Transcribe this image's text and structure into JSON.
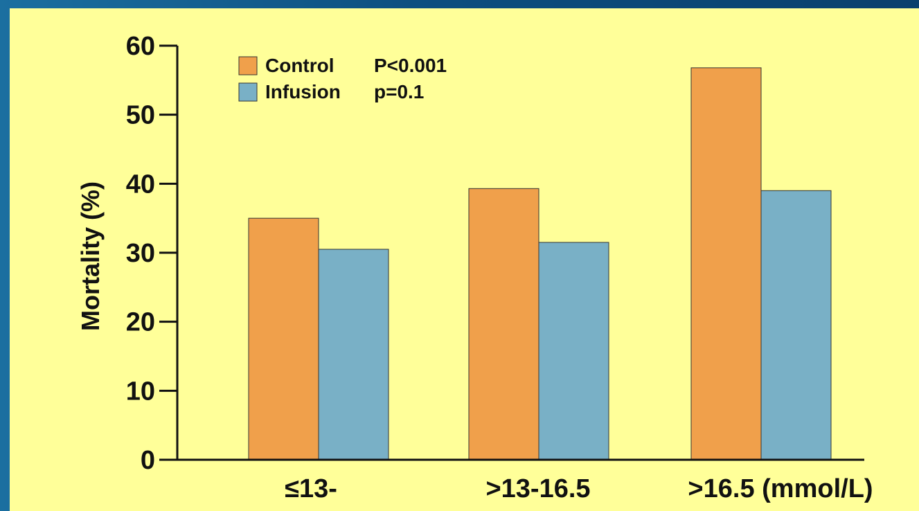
{
  "chart_data": {
    "type": "bar",
    "categories": [
      "≤13-",
      ">13-16.5",
      ">16.5 (mmol/L)"
    ],
    "series": [
      {
        "name": "Control",
        "values": [
          35,
          39.3,
          56.8
        ],
        "color": "#f0a04b"
      },
      {
        "name": "Infusion",
        "values": [
          30.5,
          31.5,
          39
        ],
        "color": "#79b0c6"
      }
    ],
    "ylabel": "Mortality (%)",
    "xlabel": "",
    "ylim": [
      0,
      60
    ],
    "yticks": [
      "0",
      "10",
      "20",
      "30",
      "40",
      "50",
      "60"
    ],
    "legend": {
      "placement": "top-left",
      "entries": [
        {
          "label": "Control",
          "pvalue": "P<0.001"
        },
        {
          "label": "Infusion",
          "pvalue": "p=0.1"
        }
      ]
    },
    "grid": false
  },
  "colors": {
    "panel_background": "#ffff99",
    "frame_background": "#0d4f80",
    "axis": "#111111"
  }
}
